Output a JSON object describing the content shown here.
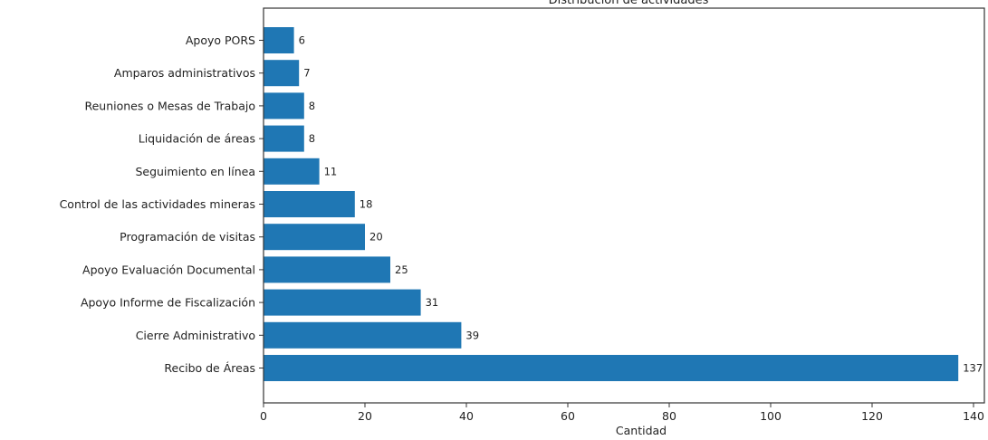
{
  "chart_data": {
    "type": "bar",
    "orientation": "horizontal",
    "title": "Distribución de actividades",
    "xlabel": "Cantidad",
    "ylabel": "",
    "xlim": [
      0,
      142
    ],
    "xticks": [
      "0",
      "20",
      "40",
      "60",
      "80",
      "100",
      "120",
      "140"
    ],
    "categories": [
      "Recibo de Áreas",
      "Cierre Administrativo",
      "Apoyo Informe de Fiscalización",
      "Apoyo Evaluación Documental",
      "Programación de visitas",
      "Control de las actividades mineras",
      "Seguimiento en línea",
      "Liquidación de áreas",
      "Reuniones o Mesas de Trabajo",
      "Amparos administrativos",
      "Apoyo PORS"
    ],
    "values": [
      137,
      39,
      31,
      25,
      20,
      18,
      11,
      8,
      8,
      7,
      6
    ],
    "data_labels": [
      "137",
      "39",
      "31",
      "25",
      "20",
      "18",
      "11",
      "8",
      "8",
      "7",
      "6"
    ],
    "bar_color": "#1f77b4",
    "grid": false,
    "legend": "none"
  }
}
